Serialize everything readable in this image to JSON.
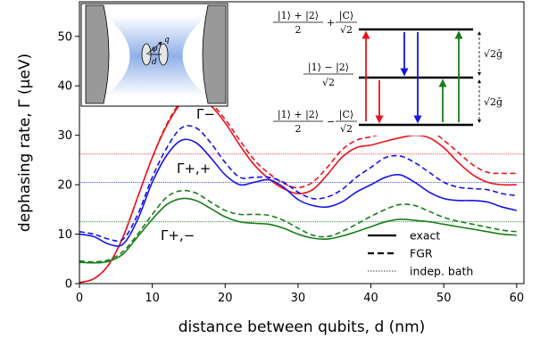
{
  "chart_data": {
    "type": "line",
    "title": "",
    "xlabel": "distance between qubits, d (nm)",
    "ylabel": "dephasing rate, Γ (μeV)",
    "xlim": [
      0,
      61
    ],
    "ylim": [
      0,
      57
    ],
    "xticks": [
      0,
      10,
      20,
      30,
      40,
      50,
      60
    ],
    "yticks": [
      0,
      10,
      20,
      30,
      40,
      50
    ],
    "grid": false,
    "legend": {
      "placement": "lower-right",
      "entries": [
        {
          "label": "exact",
          "style": "solid"
        },
        {
          "label": "FGR",
          "style": "dashed"
        },
        {
          "label": "indep. bath",
          "style": "dotted"
        }
      ]
    },
    "curve_labels": [
      {
        "text": "Γ−",
        "series": "red"
      },
      {
        "text": "Γ+,+",
        "series": "blue"
      },
      {
        "text": "Γ+,−",
        "series": "green"
      }
    ],
    "colors": {
      "red": "#e8141c",
      "blue": "#1414e8",
      "green": "#1a7d1a",
      "inset_gray": "#999999"
    },
    "series": [
      {
        "color": "red",
        "kind": "exact",
        "x": [
          0,
          2,
          4,
          6,
          8,
          10,
          12,
          14,
          16,
          18,
          20,
          22,
          24,
          26,
          28,
          30,
          32,
          34,
          36,
          38,
          40,
          42,
          44,
          46,
          48,
          50,
          52,
          54,
          56,
          58,
          60
        ],
        "y": [
          0.2,
          1.0,
          3.8,
          9.5,
          17.5,
          25.5,
          32,
          36.5,
          37.5,
          36,
          32.5,
          28,
          24,
          21.2,
          19.2,
          18.2,
          19,
          22,
          25.5,
          27.5,
          28,
          28.8,
          29.5,
          30,
          29.5,
          27.5,
          24.5,
          22,
          20.5,
          20,
          20
        ]
      },
      {
        "color": "red",
        "kind": "FGR",
        "x": [
          0,
          2,
          4,
          6,
          8,
          10,
          12,
          14,
          16,
          18,
          20,
          22,
          24,
          26,
          28,
          30,
          32,
          34,
          36,
          38,
          40,
          42,
          44,
          46,
          48,
          50,
          52,
          54,
          56,
          58,
          60
        ],
        "y": [
          0.2,
          1.0,
          3.8,
          9.5,
          17.5,
          25.5,
          32.3,
          36.8,
          37.8,
          36.5,
          33.2,
          29,
          25,
          22.3,
          20.3,
          19.4,
          20.5,
          23.5,
          27,
          29,
          29.7,
          30.5,
          31.3,
          31.6,
          31.2,
          29,
          26.5,
          24,
          22.5,
          22.3,
          22.3
        ]
      },
      {
        "color": "blue",
        "kind": "exact",
        "x": [
          0,
          2,
          4,
          6,
          8,
          10,
          12,
          14,
          16,
          18,
          20,
          22,
          24,
          26,
          28,
          30,
          32,
          34,
          36,
          38,
          40,
          42,
          44,
          46,
          48,
          50,
          52,
          54,
          56,
          58,
          60
        ],
        "y": [
          10,
          9.5,
          8,
          8,
          13,
          20.5,
          26,
          29,
          28.5,
          25.5,
          22,
          20,
          20.5,
          21,
          19.5,
          17,
          15.8,
          15.5,
          16.5,
          18.5,
          20,
          21.5,
          22,
          20.5,
          18.5,
          17.2,
          16.8,
          16.8,
          16.5,
          15.5,
          14.8
        ]
      },
      {
        "color": "blue",
        "kind": "FGR",
        "x": [
          0,
          2,
          4,
          6,
          8,
          10,
          12,
          14,
          16,
          18,
          20,
          22,
          24,
          26,
          28,
          30,
          32,
          34,
          36,
          38,
          40,
          42,
          44,
          46,
          48,
          50,
          52,
          54,
          56,
          58,
          60
        ],
        "y": [
          10.5,
          10,
          9,
          9,
          14,
          21.5,
          27.5,
          31.5,
          31.5,
          28.5,
          24.5,
          21.5,
          21.5,
          21.5,
          20.5,
          18.5,
          17.2,
          17.5,
          19,
          21.5,
          23.5,
          25.5,
          25.8,
          24.5,
          22.5,
          20.5,
          19.5,
          19.2,
          19,
          18.2,
          17.8
        ]
      },
      {
        "color": "green",
        "kind": "exact",
        "x": [
          0,
          2,
          4,
          6,
          8,
          10,
          12,
          14,
          16,
          18,
          20,
          22,
          24,
          26,
          28,
          30,
          32,
          34,
          36,
          38,
          40,
          42,
          44,
          46,
          48,
          50,
          52,
          54,
          56,
          58,
          60
        ],
        "y": [
          4.3,
          4.2,
          4.5,
          6,
          9.5,
          13,
          16,
          17.2,
          16.8,
          15.2,
          13.5,
          12.5,
          12.2,
          12,
          11.2,
          10,
          9.2,
          9,
          9.6,
          10.5,
          11.5,
          12.5,
          13,
          12.8,
          12.5,
          12,
          11.5,
          11,
          10.5,
          10,
          9.8
        ]
      },
      {
        "color": "green",
        "kind": "FGR",
        "x": [
          0,
          2,
          4,
          6,
          8,
          10,
          12,
          14,
          16,
          18,
          20,
          22,
          24,
          26,
          28,
          30,
          32,
          34,
          36,
          38,
          40,
          42,
          44,
          46,
          48,
          50,
          52,
          54,
          56,
          58,
          60
        ],
        "y": [
          4.6,
          4.4,
          4.8,
          6.5,
          10,
          14,
          17.5,
          18.8,
          18.3,
          16.5,
          14.8,
          14,
          14,
          13.8,
          12.8,
          11.2,
          9.8,
          9.5,
          10.5,
          12,
          13.6,
          15,
          16,
          15.8,
          14.6,
          13.4,
          12.6,
          12,
          11.4,
          10.8,
          10.5
        ]
      }
    ],
    "reference_lines": [
      {
        "color": "red",
        "y": 26.2,
        "style": "dotted"
      },
      {
        "color": "blue",
        "y": 20.5,
        "style": "dotted"
      },
      {
        "color": "green",
        "y": 12.5,
        "style": "dotted"
      }
    ]
  },
  "inset_schematic": {
    "labels": {
      "q": "q",
      "d": "d",
      "phi": "φ"
    }
  },
  "inset_levels": {
    "top_label_num": "|1⟩ + |2⟩",
    "top_label_den": "2",
    "top_label_plus": "+",
    "top_label_cnum": "|C⟩",
    "top_label_cden": "√2",
    "mid_label_num": "|1⟩ − |2⟩",
    "mid_label_den": "√2",
    "bot_label_num": "|1⟩ + |2⟩",
    "bot_label_den": "2",
    "bot_label_minus": "−",
    "bot_label_cnum": "|C⟩",
    "bot_label_cden": "√2",
    "gap_upper": "√2ḡ",
    "gap_lower": "√2ḡ"
  }
}
